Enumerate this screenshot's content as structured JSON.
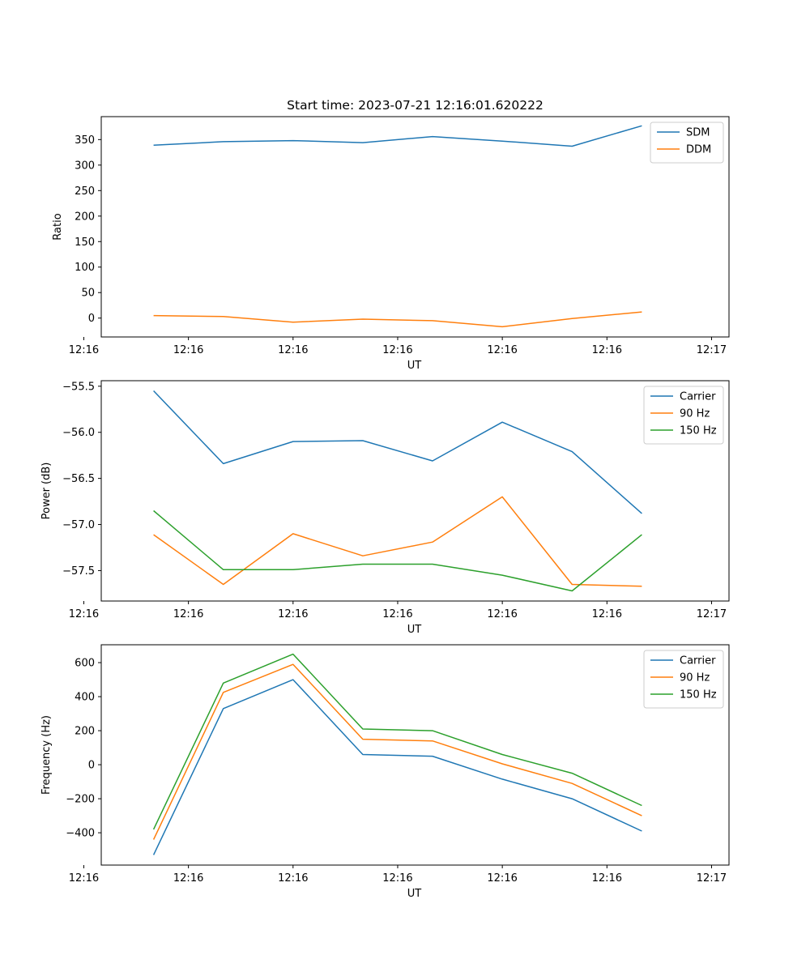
{
  "chart_data": [
    {
      "type": "line",
      "title": "Start time: 2023-07-21 12:16:01.620222",
      "xlabel": "UT",
      "ylabel": "Ratio",
      "x": [
        1,
        2,
        3,
        4,
        5,
        6,
        7,
        8
      ],
      "xlim": [
        0.25,
        9.25
      ],
      "x_ticks": [
        0.0,
        1.5,
        3.0,
        4.5,
        6.0,
        7.5,
        9.0
      ],
      "x_tick_labels": [
        "12:16",
        "12:16",
        "12:16",
        "12:16",
        "12:16",
        "12:16",
        "12:17"
      ],
      "ylim": [
        -37,
        395
      ],
      "y_ticks": [
        0,
        50,
        100,
        150,
        200,
        250,
        300,
        350
      ],
      "y_tick_labels": [
        "0",
        "50",
        "100",
        "150",
        "200",
        "250",
        "300",
        "350"
      ],
      "legend": "top-right",
      "series": [
        {
          "name": "SDM",
          "color": "#1f77b4",
          "values": [
            339,
            346,
            348,
            344,
            356,
            347,
            337,
            377
          ]
        },
        {
          "name": "DDM",
          "color": "#ff7f0e",
          "values": [
            5,
            3,
            -8,
            -2,
            -5,
            -17,
            -1,
            12
          ]
        }
      ]
    },
    {
      "type": "line",
      "title": "",
      "xlabel": "UT",
      "ylabel": "Power (dB)",
      "x": [
        1,
        2,
        3,
        4,
        5,
        6,
        7,
        8
      ],
      "xlim": [
        0.25,
        9.25
      ],
      "x_ticks": [
        0.0,
        1.5,
        3.0,
        4.5,
        6.0,
        7.5,
        9.0
      ],
      "x_tick_labels": [
        "12:16",
        "12:16",
        "12:16",
        "12:16",
        "12:16",
        "12:16",
        "12:17"
      ],
      "ylim": [
        -57.83,
        -55.44
      ],
      "y_ticks": [
        -57.5,
        -57.0,
        -56.5,
        -56.0,
        -55.5
      ],
      "y_tick_labels": [
        "−57.5",
        "−57.0",
        "−56.5",
        "−56.0",
        "−55.5"
      ],
      "legend": "top-right",
      "series": [
        {
          "name": "Carrier",
          "color": "#1f77b4",
          "values": [
            -55.55,
            -56.34,
            -56.1,
            -56.09,
            -56.31,
            -55.89,
            -56.21,
            -56.88
          ]
        },
        {
          "name": "90 Hz",
          "color": "#ff7f0e",
          "values": [
            -57.11,
            -57.65,
            -57.1,
            -57.34,
            -57.19,
            -56.7,
            -57.65,
            -57.67
          ]
        },
        {
          "name": "150 Hz",
          "color": "#2ca02c",
          "values": [
            -56.85,
            -57.49,
            -57.49,
            -57.43,
            -57.43,
            -57.55,
            -57.72,
            -57.11
          ]
        }
      ]
    },
    {
      "type": "line",
      "title": "",
      "xlabel": "UT",
      "ylabel": "Frequency (Hz)",
      "x": [
        1,
        2,
        3,
        4,
        5,
        6,
        7,
        8
      ],
      "xlim": [
        0.25,
        9.25
      ],
      "x_ticks": [
        0.0,
        1.5,
        3.0,
        4.5,
        6.0,
        7.5,
        9.0
      ],
      "x_tick_labels": [
        "12:16",
        "12:16",
        "12:16",
        "12:16",
        "12:16",
        "12:16",
        "12:17"
      ],
      "ylim": [
        -590,
        705
      ],
      "y_ticks": [
        -400,
        -200,
        0,
        200,
        400,
        600
      ],
      "y_tick_labels": [
        "−400",
        "−200",
        "0",
        "200",
        "400",
        "600"
      ],
      "legend": "top-right",
      "series": [
        {
          "name": "Carrier",
          "color": "#1f77b4",
          "values": [
            -530,
            330,
            500,
            60,
            50,
            -85,
            -200,
            -390
          ]
        },
        {
          "name": "90 Hz",
          "color": "#ff7f0e",
          "values": [
            -440,
            425,
            590,
            150,
            140,
            5,
            -110,
            -300
          ]
        },
        {
          "name": "150 Hz",
          "color": "#2ca02c",
          "values": [
            -380,
            480,
            650,
            210,
            200,
            60,
            -50,
            -240
          ]
        }
      ]
    }
  ]
}
